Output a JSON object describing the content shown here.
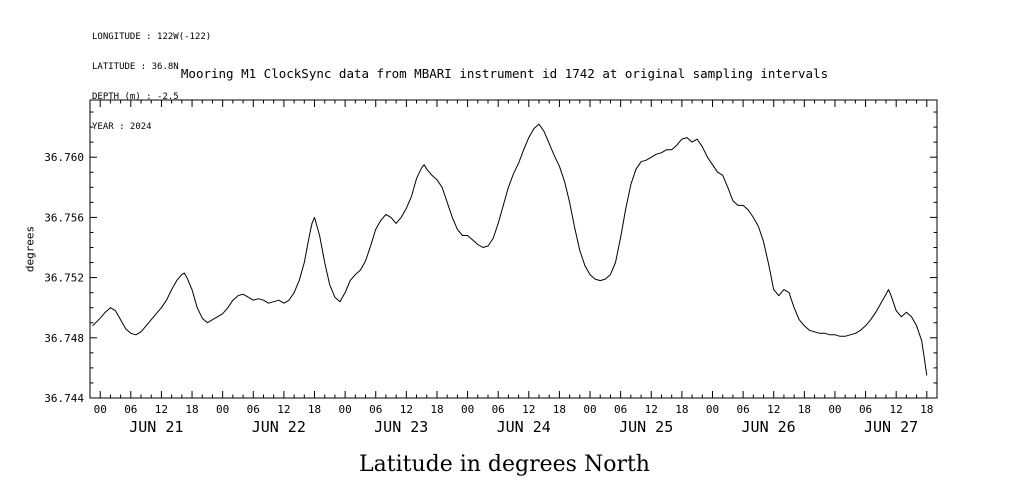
{
  "meta": {
    "longitude": "LONGITUDE : 122W(-122)",
    "latitude": "LATITUDE : 36.8N",
    "depth": "DEPTH (m) : -2.5",
    "year": "YEAR : 2024"
  },
  "title": "Mooring M1 ClockSync data from MBARI instrument id 1742 at original sampling intervals",
  "xlabel": "Latitude in degrees North",
  "ylabel": "degrees",
  "chart_data": {
    "type": "line",
    "title": "Mooring M1 ClockSync data from MBARI instrument id 1742 at original sampling intervals",
    "xlabel": "Latitude in degrees North",
    "ylabel": "degrees",
    "line_color": "#000000",
    "background": "#ffffff",
    "grid": false,
    "legend": false,
    "ylim": [
      36.744,
      36.7638
    ],
    "yticks": [
      36.744,
      36.748,
      36.752,
      36.756,
      36.76
    ],
    "ytick_minor_step": 0.001,
    "x_unit": "hours since JUN 21 2024 00:00",
    "x_range_hours": [
      -2,
      164
    ],
    "x_major_step_hours": 6,
    "x_major_last_hour": 162,
    "x_minor_step_hours": 2,
    "hour_labels_cycle": [
      "00",
      "06",
      "12",
      "18"
    ],
    "day_labels": [
      "JUN 21",
      "JUN 22",
      "JUN 23",
      "JUN 24",
      "JUN 25",
      "JUN 26",
      "JUN 27"
    ],
    "day_label_center_hour_offset": 11,
    "points": [
      [
        -1.5,
        36.7488
      ],
      [
        0,
        36.7493
      ],
      [
        1,
        36.7497
      ],
      [
        2,
        36.75
      ],
      [
        3,
        36.7498
      ],
      [
        4,
        36.7492
      ],
      [
        5,
        36.7486
      ],
      [
        6,
        36.7483
      ],
      [
        7,
        36.7482
      ],
      [
        8,
        36.7484
      ],
      [
        9,
        36.7488
      ],
      [
        10,
        36.7492
      ],
      [
        11,
        36.7496
      ],
      [
        12,
        36.75
      ],
      [
        13,
        36.7505
      ],
      [
        14,
        36.7512
      ],
      [
        15,
        36.7518
      ],
      [
        16,
        36.7522
      ],
      [
        16.5,
        36.7523
      ],
      [
        17,
        36.752
      ],
      [
        18,
        36.7512
      ],
      [
        19,
        36.75
      ],
      [
        20,
        36.7493
      ],
      [
        21,
        36.749
      ],
      [
        22,
        36.7492
      ],
      [
        23,
        36.7494
      ],
      [
        24,
        36.7496
      ],
      [
        25,
        36.75
      ],
      [
        26,
        36.7505
      ],
      [
        27,
        36.7508
      ],
      [
        28,
        36.7509
      ],
      [
        29,
        36.7507
      ],
      [
        30,
        36.7505
      ],
      [
        31,
        36.7506
      ],
      [
        32,
        36.7505
      ],
      [
        33,
        36.7503
      ],
      [
        34,
        36.7504
      ],
      [
        35,
        36.7505
      ],
      [
        36,
        36.7503
      ],
      [
        37,
        36.7505
      ],
      [
        38,
        36.751
      ],
      [
        39,
        36.7518
      ],
      [
        40,
        36.753
      ],
      [
        41,
        36.7548
      ],
      [
        41.5,
        36.7556
      ],
      [
        42,
        36.756
      ],
      [
        43,
        36.7548
      ],
      [
        44,
        36.753
      ],
      [
        45,
        36.7515
      ],
      [
        46,
        36.7507
      ],
      [
        47,
        36.7504
      ],
      [
        48,
        36.751
      ],
      [
        49,
        36.7518
      ],
      [
        50,
        36.7522
      ],
      [
        51,
        36.7525
      ],
      [
        52,
        36.7531
      ],
      [
        53,
        36.7541
      ],
      [
        54,
        36.7552
      ],
      [
        55,
        36.7558
      ],
      [
        56,
        36.7562
      ],
      [
        57,
        36.756
      ],
      [
        58,
        36.7556
      ],
      [
        59,
        36.756
      ],
      [
        60,
        36.7566
      ],
      [
        61,
        36.7574
      ],
      [
        62,
        36.7586
      ],
      [
        63,
        36.7593
      ],
      [
        63.5,
        36.7595
      ],
      [
        64,
        36.7592
      ],
      [
        65,
        36.7588
      ],
      [
        66,
        36.7585
      ],
      [
        67,
        36.758
      ],
      [
        68,
        36.757
      ],
      [
        69,
        36.756
      ],
      [
        70,
        36.7552
      ],
      [
        71,
        36.7548
      ],
      [
        72,
        36.7548
      ],
      [
        73,
        36.7545
      ],
      [
        74,
        36.7542
      ],
      [
        75,
        36.754
      ],
      [
        76,
        36.7541
      ],
      [
        77,
        36.7546
      ],
      [
        78,
        36.7556
      ],
      [
        79,
        36.7568
      ],
      [
        80,
        36.758
      ],
      [
        81,
        36.7589
      ],
      [
        82,
        36.7596
      ],
      [
        83,
        36.7605
      ],
      [
        84,
        36.7613
      ],
      [
        85,
        36.7619
      ],
      [
        86,
        36.7622
      ],
      [
        87,
        36.7617
      ],
      [
        88,
        36.7609
      ],
      [
        89,
        36.7601
      ],
      [
        90,
        36.7594
      ],
      [
        91,
        36.7584
      ],
      [
        92,
        36.757
      ],
      [
        93,
        36.7553
      ],
      [
        94,
        36.7538
      ],
      [
        95,
        36.7528
      ],
      [
        96,
        36.7522
      ],
      [
        97,
        36.7519
      ],
      [
        98,
        36.7518
      ],
      [
        99,
        36.7519
      ],
      [
        100,
        36.7522
      ],
      [
        101,
        36.753
      ],
      [
        102,
        36.7547
      ],
      [
        103,
        36.7566
      ],
      [
        104,
        36.7582
      ],
      [
        105,
        36.7592
      ],
      [
        106,
        36.7597
      ],
      [
        107,
        36.7598
      ],
      [
        108,
        36.76
      ],
      [
        109,
        36.7602
      ],
      [
        110,
        36.7603
      ],
      [
        111,
        36.7605
      ],
      [
        112,
        36.7605
      ],
      [
        113,
        36.7608
      ],
      [
        114,
        36.7612
      ],
      [
        115,
        36.7613
      ],
      [
        116,
        36.761
      ],
      [
        117,
        36.7612
      ],
      [
        118,
        36.7607
      ],
      [
        119,
        36.76
      ],
      [
        120,
        36.7595
      ],
      [
        121,
        36.759
      ],
      [
        122,
        36.7588
      ],
      [
        123,
        36.758
      ],
      [
        124,
        36.7571
      ],
      [
        125,
        36.7568
      ],
      [
        126,
        36.7568
      ],
      [
        127,
        36.7565
      ],
      [
        128,
        36.756
      ],
      [
        129,
        36.7554
      ],
      [
        130,
        36.7544
      ],
      [
        131,
        36.7529
      ],
      [
        132,
        36.7512
      ],
      [
        133,
        36.7508
      ],
      [
        134,
        36.7512
      ],
      [
        135,
        36.751
      ],
      [
        136,
        36.75
      ],
      [
        137,
        36.7492
      ],
      [
        138,
        36.7488
      ],
      [
        139,
        36.7485
      ],
      [
        140,
        36.7484
      ],
      [
        141,
        36.7483
      ],
      [
        142,
        36.7483
      ],
      [
        143,
        36.7482
      ],
      [
        144,
        36.7482
      ],
      [
        145,
        36.7481
      ],
      [
        146,
        36.7481
      ],
      [
        147,
        36.7482
      ],
      [
        148,
        36.7483
      ],
      [
        149,
        36.7485
      ],
      [
        150,
        36.7488
      ],
      [
        151,
        36.7492
      ],
      [
        152,
        36.7497
      ],
      [
        153,
        36.7503
      ],
      [
        154,
        36.7509
      ],
      [
        154.5,
        36.7512
      ],
      [
        155,
        36.7508
      ],
      [
        156,
        36.7498
      ],
      [
        157,
        36.7494
      ],
      [
        158,
        36.7497
      ],
      [
        159,
        36.7494
      ],
      [
        160,
        36.7488
      ],
      [
        161,
        36.7478
      ],
      [
        161.5,
        36.7467
      ],
      [
        162,
        36.7455
      ]
    ]
  }
}
